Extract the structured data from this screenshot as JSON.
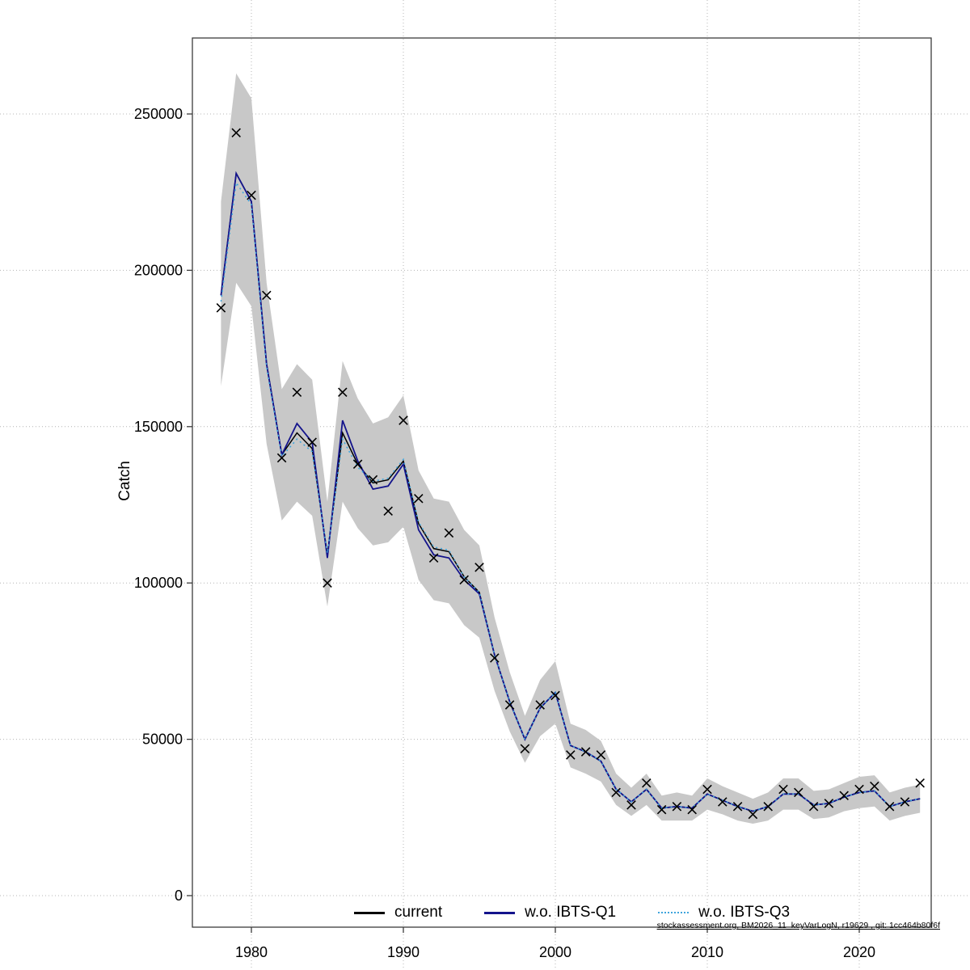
{
  "figure": {
    "y_axis_title": "Catch",
    "footer": "stockassessment.org, BM2026_11_keyVarLogN, r19629 , git: 1cc464b80f6f"
  },
  "legend": {
    "items": [
      {
        "label": "current",
        "color": "#000000",
        "style": "solid"
      },
      {
        "label": "w.o. IBTS-Q1",
        "color": "#14148c",
        "style": "solid"
      },
      {
        "label": "w.o. IBTS-Q3",
        "color": "#3fa5dc",
        "style": "dotted"
      }
    ]
  },
  "chart_data": {
    "type": "line",
    "title": "",
    "xlabel": "",
    "ylabel": "Catch",
    "xlim": [
      1976.1,
      2024.9
    ],
    "ylim": [
      0,
      250000
    ],
    "grid": true,
    "legend_position": "bottom",
    "x_ticks": [
      1980,
      1990,
      2000,
      2010,
      2020
    ],
    "y_ticks": [
      0,
      50000,
      100000,
      150000,
      200000,
      250000
    ],
    "years": [
      1978,
      1979,
      1980,
      1981,
      1982,
      1983,
      1984,
      1985,
      1986,
      1987,
      1988,
      1989,
      1990,
      1991,
      1992,
      1993,
      1994,
      1995,
      1996,
      1997,
      1998,
      1999,
      2000,
      2001,
      2002,
      2003,
      2004,
      2005,
      2006,
      2007,
      2008,
      2009,
      2010,
      2011,
      2012,
      2013,
      2014,
      2015,
      2016,
      2017,
      2018,
      2019,
      2020,
      2021,
      2022,
      2023,
      2024
    ],
    "observed_markers": {
      "symbol": "x",
      "color": "#000000",
      "values": [
        188000,
        244000,
        224000,
        192000,
        140000,
        161000,
        145000,
        100000,
        161000,
        138000,
        133000,
        123000,
        152000,
        127000,
        108000,
        116000,
        101000,
        105000,
        76000,
        61000,
        47000,
        61000,
        64000,
        45000,
        46000,
        45000,
        33000,
        29000,
        36000,
        27500,
        28500,
        27500,
        34000,
        30000,
        28500,
        26000,
        28500,
        34000,
        33000,
        28500,
        29500,
        32000,
        34000,
        35000,
        28500,
        30000,
        36000
      ]
    },
    "confidence_band": {
      "color": "#c8c8c8",
      "lower": [
        163000,
        196000,
        188500,
        144500,
        120000,
        126000,
        121500,
        92500,
        126000,
        117500,
        112000,
        113000,
        118000,
        101000,
        94500,
        93500,
        86500,
        82500,
        65500,
        52500,
        42500,
        51000,
        55000,
        41000,
        39000,
        36500,
        29000,
        25500,
        29000,
        24000,
        24000,
        24000,
        27500,
        26000,
        24000,
        23000,
        24000,
        27500,
        27500,
        24500,
        25000,
        27000,
        28000,
        28500,
        24000,
        25500,
        26500
      ],
      "upper": [
        222000,
        263000,
        255000,
        196000,
        162000,
        170000,
        165000,
        126000,
        171000,
        159000,
        151000,
        153000,
        160000,
        136000,
        127000,
        126000,
        117000,
        112000,
        89000,
        71500,
        57500,
        69000,
        75000,
        55000,
        53000,
        49500,
        39000,
        34500,
        39000,
        32000,
        33000,
        32000,
        37500,
        35000,
        33000,
        31000,
        33000,
        37500,
        37500,
        33500,
        34000,
        36000,
        38000,
        38500,
        33000,
        34500,
        35500
      ]
    },
    "series": [
      {
        "name": "current",
        "color": "#000000",
        "dash": null,
        "width": 1.5,
        "values": [
          192000,
          231000,
          222000,
          170000,
          141000,
          148000,
          143000,
          109000,
          148000,
          138000,
          132000,
          133000,
          139000,
          119000,
          111000,
          110000,
          102000,
          97000,
          77000,
          62000,
          50000,
          60000,
          65000,
          48000,
          46000,
          43000,
          34000,
          30000,
          34000,
          28000,
          28500,
          28000,
          32500,
          30500,
          28500,
          27000,
          28500,
          32500,
          32500,
          29000,
          29500,
          31500,
          33000,
          33500,
          28500,
          30000,
          31000
        ]
      },
      {
        "name": "w.o. IBTS-Q1",
        "color": "#14148c",
        "dash": null,
        "width": 1.8,
        "values": [
          192000,
          231000,
          222000,
          170000,
          141000,
          151000,
          145000,
          108000,
          152000,
          139000,
          130000,
          131000,
          138000,
          117000,
          109000,
          108000,
          101000,
          96500,
          77000,
          62000,
          50000,
          60000,
          65000,
          48000,
          46000,
          43000,
          34000,
          30000,
          34000,
          28000,
          28500,
          28000,
          32500,
          30500,
          28500,
          27000,
          28500,
          32500,
          32500,
          29000,
          29500,
          31500,
          33000,
          33500,
          28500,
          30000,
          31000
        ]
      },
      {
        "name": "w.o. IBTS-Q3",
        "color": "#3fa5dc",
        "dash": "2 4",
        "width": 1.6,
        "values": [
          190000,
          228000,
          221000,
          169000,
          140500,
          146000,
          142000,
          109500,
          146000,
          137000,
          132500,
          133500,
          139500,
          119500,
          111500,
          110500,
          102000,
          97000,
          77000,
          62000,
          50000,
          60000,
          65000,
          48000,
          46000,
          43000,
          34000,
          30000,
          34000,
          28000,
          28500,
          28000,
          32500,
          30500,
          28500,
          27000,
          28500,
          32500,
          32500,
          29000,
          29500,
          31500,
          33000,
          33500,
          28500,
          30000,
          31000
        ]
      }
    ]
  }
}
